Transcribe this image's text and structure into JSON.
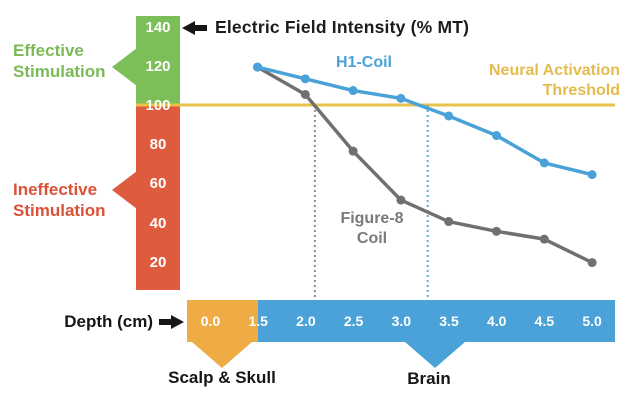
{
  "title": "Electric Field Intensity (% MT)",
  "colors": {
    "effective_green": "#7cbf59",
    "ineffective_red": "#de5b3e",
    "scalp_orange": "#f0ac44",
    "brain_blue": "#4aa2d8",
    "h1_line_blue": "#4aa2d8",
    "figure8_line_gray": "#707070",
    "threshold_gold": "#e8c24a",
    "text_black": "#161616"
  },
  "icons": {
    "y_axis_arrow": "left-arrow",
    "x_axis_arrow": "right-arrow"
  },
  "left_labels": {
    "effective": {
      "line1": "Effective",
      "line2": "Stimulation"
    },
    "ineffective": {
      "line1": "Ineffective",
      "line2": "Stimulation"
    }
  },
  "y_axis": {
    "ticks": [
      140,
      120,
      100,
      80,
      60,
      40,
      20
    ]
  },
  "series_labels": {
    "h1": "H1-Coil",
    "figure8_line1": "Figure-8",
    "figure8_line2": "Coil"
  },
  "threshold_label": {
    "line1": "Neural Activation",
    "line2": "Threshold"
  },
  "x_axis": {
    "label": "Depth (cm)",
    "ticks": [
      "0.0",
      "1.5",
      "2.0",
      "2.5",
      "3.0",
      "3.5",
      "4.0",
      "4.5",
      "5.0"
    ],
    "scalp_label": "Scalp & Skull",
    "brain_label": "Brain"
  },
  "chart_data": {
    "type": "line",
    "title": "Electric Field Intensity (% MT) vs Depth (cm)",
    "xlabel": "Depth (cm)",
    "ylabel": "Electric Field Intensity (% MT)",
    "x": [
      1.5,
      2.0,
      2.5,
      3.0,
      3.5,
      4.0,
      4.5,
      5.0
    ],
    "ylim": [
      0,
      140
    ],
    "series": [
      {
        "name": "Figure-8 Coil",
        "color": "#707070",
        "values": [
          120,
          106,
          77,
          52,
          41,
          36,
          32,
          20
        ]
      },
      {
        "name": "H1-Coil",
        "color": "#4aa2d8",
        "values": [
          120,
          114,
          108,
          104,
          95,
          85,
          71,
          65
        ]
      }
    ],
    "threshold": {
      "value": 100,
      "label": "Neural Activation Threshold",
      "color": "#e8c24a"
    },
    "threshold_crossings": [
      {
        "series": "Figure-8 Coil",
        "depth": 2.1,
        "color": "#8f8f8f"
      },
      {
        "series": "H1-Coil",
        "depth": 3.28,
        "color": "#62abdb"
      }
    ],
    "x_band_segments": [
      {
        "label": "Scalp & Skull",
        "range": [
          0.0,
          1.5
        ],
        "color": "#f0ac44"
      },
      {
        "label": "Brain",
        "range": [
          1.5,
          5.0
        ],
        "color": "#4aa2d8"
      }
    ],
    "effective_region": {
      "label": "Effective Stimulation",
      "range": [
        100,
        140
      ],
      "color": "#7cbf59"
    },
    "ineffective_region": {
      "label": "Ineffective Stimulation",
      "range": [
        0,
        100
      ],
      "color": "#de5b3e"
    }
  }
}
